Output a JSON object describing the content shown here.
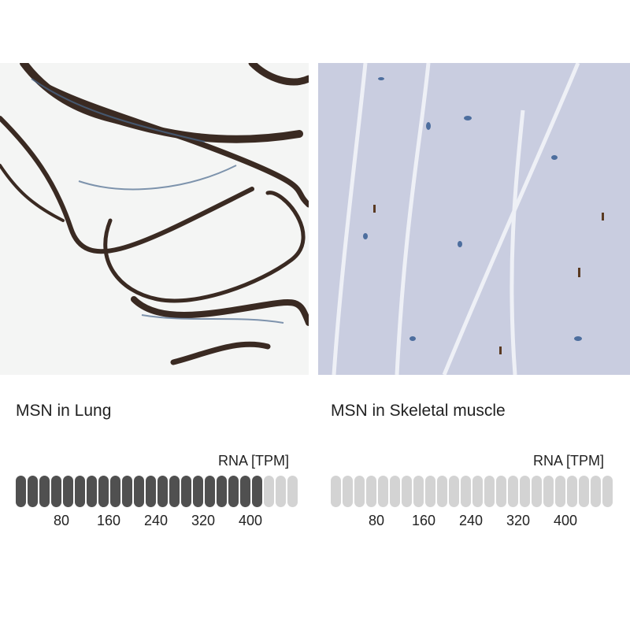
{
  "panels": [
    {
      "title": "MSN in Lung",
      "unit": "RNA [TPM]",
      "tpm_level_fraction": 0.875,
      "bar_count": 24,
      "filled_bars": 21,
      "ticks": [
        "80",
        "160",
        "240",
        "320",
        "400"
      ],
      "active_color": "#505050",
      "inactive_color": "#d3d3d3"
    },
    {
      "title": "MSN in Skeletal muscle",
      "unit": "RNA [TPM]",
      "tpm_level_fraction": 0,
      "bar_count": 24,
      "filled_bars": 0,
      "ticks": [
        "80",
        "160",
        "240",
        "320",
        "400"
      ],
      "active_color": "#505050",
      "inactive_color": "#d3d3d3"
    }
  ]
}
